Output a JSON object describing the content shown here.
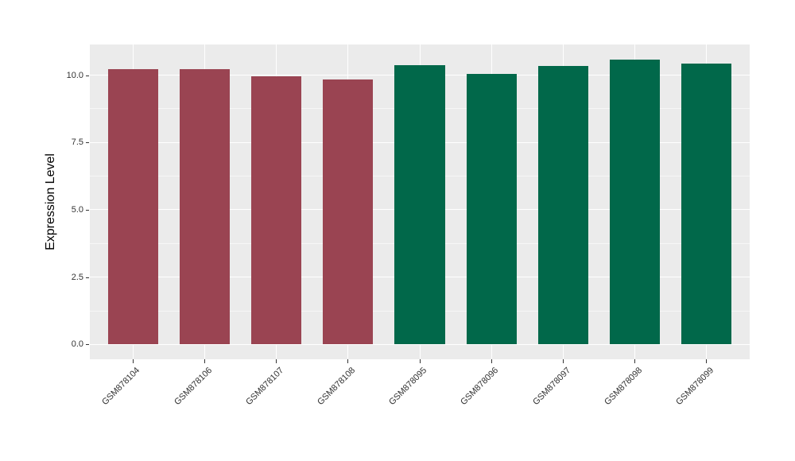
{
  "chart_data": {
    "type": "bar",
    "title": "",
    "xlabel": "",
    "ylabel": "Expression Level",
    "categories": [
      "GSM878104",
      "GSM878106",
      "GSM878107",
      "GSM878108",
      "GSM878095",
      "GSM878096",
      "GSM878097",
      "GSM878098",
      "GSM878099"
    ],
    "values": [
      10.22,
      10.22,
      9.97,
      9.84,
      10.38,
      10.05,
      10.33,
      10.58,
      10.43
    ],
    "bar_colors": [
      "#9A4452",
      "#9A4452",
      "#9A4452",
      "#9A4452",
      "#01684A",
      "#01684A",
      "#01684A",
      "#01684A",
      "#01684A"
    ],
    "yticks": [
      0.0,
      2.5,
      5.0,
      7.5,
      10.0
    ],
    "ytick_labels": [
      "0.0",
      "2.5",
      "5.0",
      "7.5",
      "10.0"
    ],
    "ylim": [
      -0.55,
      11.14
    ],
    "bar_width_fraction": 0.7,
    "grid": true,
    "legend_position": "none",
    "panel_bg": "#EBEBEB",
    "grid_major_color": "#FFFFFF",
    "grid_minor_color": "#F6F6F6",
    "axis_text_color": "#333333",
    "axis_title_color": "#000000",
    "tick_color": "#333333"
  }
}
